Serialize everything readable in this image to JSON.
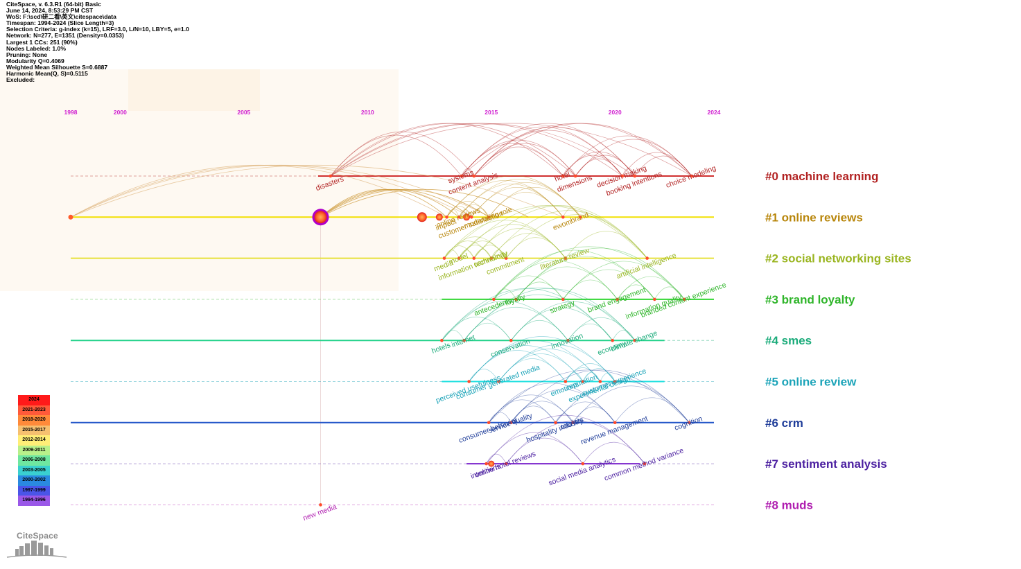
{
  "header": {
    "lines": [
      "CiteSpace, v. 6.3.R1 (64-bit) Basic",
      "June 14, 2024, 8:53:29 PM CST",
      "WoS: F:\\scd\\研二看\\英文\\citespace\\data",
      "Timespan: 1994-2024 (Slice Length=3)",
      "Selection Criteria: g-index (k=15), LRF=3.0, L/N=10, LBY=5, e=1.0",
      "Network: N=277, E=1351 (Density=0.0353)",
      "Largest 1 CCs: 251 (90%)",
      "Nodes Labeled: 1.0%",
      "Pruning: None",
      "Modularity Q=0.4069",
      "Weighted Mean Silhouette S=0.6887",
      "Harmonic Mean(Q, S)=0.5115",
      "Excluded:"
    ]
  },
  "chart_data": {
    "type": "timeline",
    "years": [
      1998,
      2000,
      2005,
      2010,
      2015,
      2020,
      2024
    ],
    "xlim": [
      1998,
      2024
    ],
    "clusters": [
      {
        "id": "#0 machine learning",
        "color": "#b22222",
        "start": 2008,
        "end": 2024,
        "keywords": [
          {
            "text": "disasters",
            "year": 2008.5
          },
          {
            "text": "systems",
            "year": 2013.8
          },
          {
            "text": "content analysis",
            "year": 2014.3
          },
          {
            "text": "hotel",
            "year": 2017.9
          },
          {
            "text": "dimensions",
            "year": 2018.4
          },
          {
            "text": "decision making",
            "year": 2020.3
          },
          {
            "text": "booking intentions",
            "year": 2020.8
          },
          {
            "text": "choice modeling",
            "year": 2023.1
          }
        ]
      },
      {
        "id": "#1 online reviews",
        "color": "#b8860b",
        "start": 1998,
        "end": 2024,
        "keywords": [
          {
            "text": "impact",
            "year": 2013.2
          },
          {
            "text": "online reviews",
            "year": 2013.7
          },
          {
            "text": "customer satisfaction",
            "year": 2014.2
          },
          {
            "text": "moderating role",
            "year": 2014.9
          },
          {
            "text": "ewom",
            "year": 2017.9
          },
          {
            "text": "brand",
            "year": 2018.6
          }
        ]
      },
      {
        "id": "#2 social networking sites",
        "color": "#9ab520",
        "start": 1998,
        "end": 2024,
        "keywords": [
          {
            "text": "media",
            "year": 2013.1
          },
          {
            "text": "model",
            "year": 2013.7
          },
          {
            "text": "information technology",
            "year": 2014.3
          },
          {
            "text": "community",
            "year": 2015.0
          },
          {
            "text": "commitment",
            "year": 2015.6
          },
          {
            "text": "literature review",
            "year": 2018.0
          },
          {
            "text": "artificial intelligence",
            "year": 2021.3
          }
        ]
      },
      {
        "id": "#3 brand loyalty",
        "color": "#2fb52a",
        "start": 2013,
        "end": 2024,
        "keywords": [
          {
            "text": "antecedents",
            "year": 2015.1
          },
          {
            "text": "loyalty",
            "year": 2016.0
          },
          {
            "text": "strategy",
            "year": 2017.9
          },
          {
            "text": "brand engagement",
            "year": 2020.1
          },
          {
            "text": "information quality",
            "year": 2021.6
          },
          {
            "text": "branded content experience",
            "year": 2022.8
          }
        ]
      },
      {
        "id": "#4 smes",
        "color": "#1aab7a",
        "start": 1998,
        "end": 2022,
        "keywords": [
          {
            "text": "hotels",
            "year": 2013.0
          },
          {
            "text": "internet",
            "year": 2013.9
          },
          {
            "text": "conservation",
            "year": 2015.8
          },
          {
            "text": "innovation",
            "year": 2018.1
          },
          {
            "text": "economy",
            "year": 2019.9
          },
          {
            "text": "climate change",
            "year": 2020.8
          }
        ]
      },
      {
        "id": "#5 online review",
        "color": "#1aa3b8",
        "start": 2013,
        "end": 2022,
        "keywords": [
          {
            "text": "perceived usefulness",
            "year": 2014.1
          },
          {
            "text": "consumer generated media",
            "year": 2015.3
          },
          {
            "text": "emotions",
            "year": 2018.0
          },
          {
            "text": "reputation",
            "year": 2018.7
          },
          {
            "text": "experimental design",
            "year": 2019.4
          },
          {
            "text": "customer experience",
            "year": 2020.0
          }
        ]
      },
      {
        "id": "#6 crm",
        "color": "#1f3d99",
        "start": 1998,
        "end": 2024,
        "keywords": [
          {
            "text": "consumer behavior",
            "year": 2014.9
          },
          {
            "text": "service quality",
            "year": 2015.8
          },
          {
            "text": "hospitality industry",
            "year": 2017.6
          },
          {
            "text": "tourists",
            "year": 2018.3
          },
          {
            "text": "revenue management",
            "year": 2020.0
          },
          {
            "text": "cognition",
            "year": 2023.0
          }
        ]
      },
      {
        "id": "#7 sentiment analysis",
        "color": "#4b1fa0",
        "start": 2014,
        "end": 2021,
        "keywords": [
          {
            "text": "intentions",
            "year": 2014.8
          },
          {
            "text": "online hotel reviews",
            "year": 2015.6
          },
          {
            "text": "social media analytics",
            "year": 2018.7
          },
          {
            "text": "common method variance",
            "year": 2021.2
          }
        ]
      },
      {
        "id": "#8 muds",
        "color": "#b01fb0",
        "start": 1998,
        "end": 2024,
        "keywords": [
          {
            "text": "new media",
            "year": 2008.1
          }
        ]
      }
    ],
    "legend": [
      "2024",
      "2021-2023",
      "2018-2020",
      "2015-2017",
      "2012-2014",
      "2009-2011",
      "2006-2008",
      "2003-2005",
      "2000-2002",
      "1997-1999",
      "1994-1996"
    ],
    "legend_colors": [
      "#ff1a1a",
      "#ff5a3a",
      "#ff8a3a",
      "#f6c070",
      "#ffee77",
      "#b8f08a",
      "#6fe7a0",
      "#3ad0d0",
      "#2a8ae0",
      "#4a55e8",
      "#9a58e8"
    ]
  },
  "logo": {
    "text": "CiteSpace"
  }
}
